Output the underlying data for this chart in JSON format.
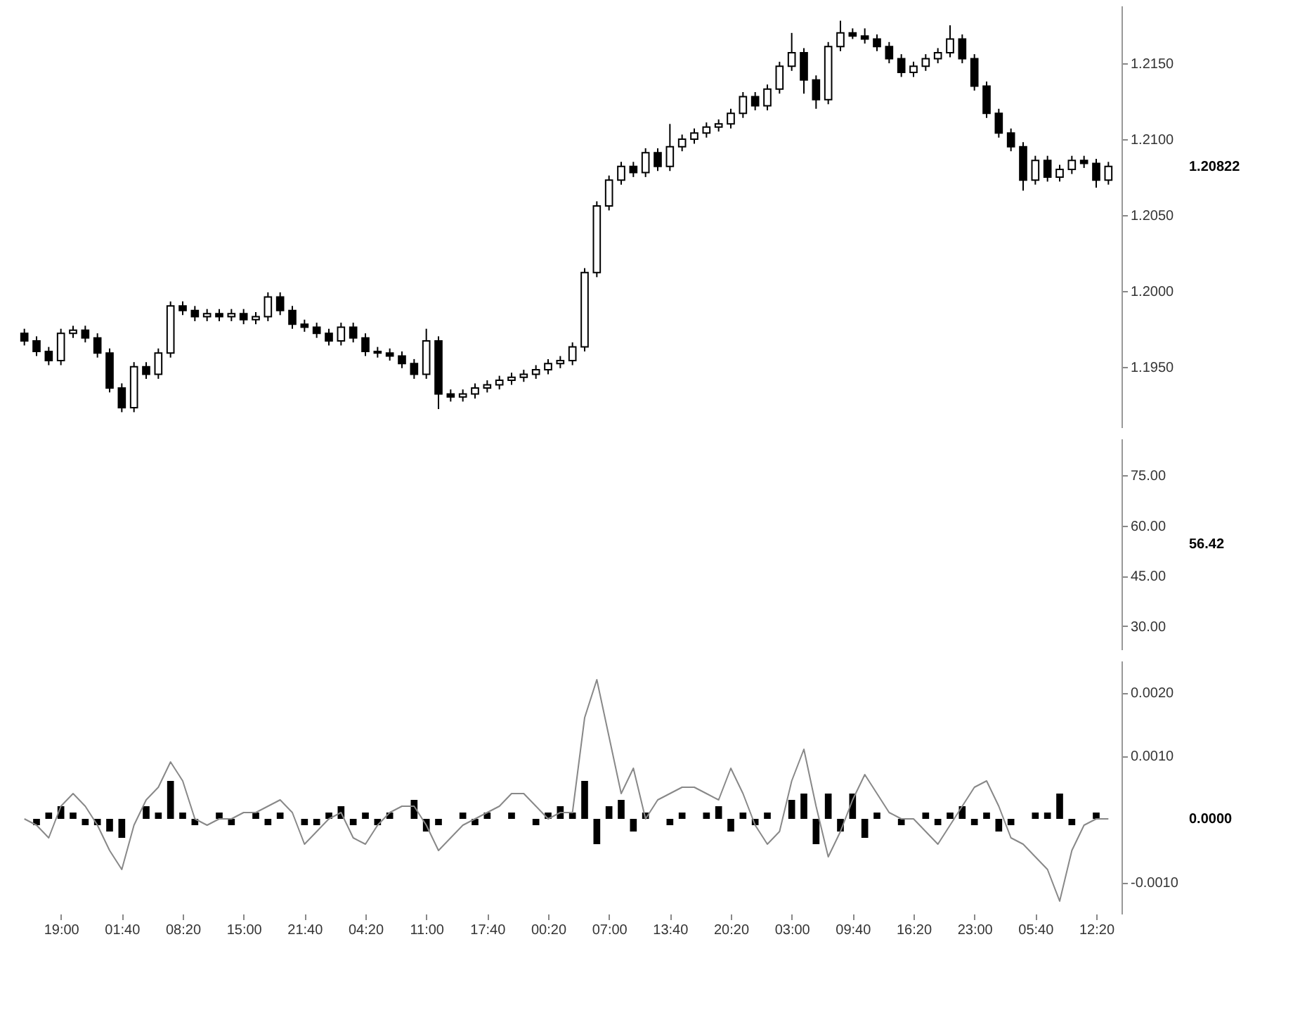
{
  "chart_data": [
    {
      "type": "candlestick",
      "color": "#000000",
      "tick_labels": "y",
      "ohlc": [
        [
          1.1972,
          1.1975,
          1.1964,
          1.1967
        ],
        [
          1.1967,
          1.197,
          1.1957,
          1.196
        ],
        [
          1.196,
          1.1963,
          1.1951,
          1.1954
        ],
        [
          1.1954,
          1.1975,
          1.1951,
          1.1972
        ],
        [
          1.1972,
          1.1977,
          1.1969,
          1.1974
        ],
        [
          1.1974,
          1.1977,
          1.1966,
          1.1969
        ],
        [
          1.1969,
          1.1972,
          1.1956,
          1.1959
        ],
        [
          1.1959,
          1.1962,
          1.1933,
          1.1936
        ],
        [
          1.1936,
          1.1939,
          1.192,
          1.1923
        ],
        [
          1.1923,
          1.1953,
          1.192,
          1.195
        ],
        [
          1.195,
          1.1953,
          1.1942,
          1.1945
        ],
        [
          1.1945,
          1.1962,
          1.1942,
          1.1959
        ],
        [
          1.1959,
          1.1993,
          1.1956,
          1.199
        ],
        [
          1.199,
          1.1993,
          1.1984,
          1.1987
        ],
        [
          1.1987,
          1.199,
          1.198,
          1.1983
        ],
        [
          1.1983,
          1.1988,
          1.198,
          1.1985
        ],
        [
          1.1985,
          1.1988,
          1.198,
          1.1983
        ],
        [
          1.1983,
          1.1988,
          1.198,
          1.1985
        ],
        [
          1.1985,
          1.1988,
          1.1978,
          1.1981
        ],
        [
          1.1981,
          1.1986,
          1.1978,
          1.1983
        ],
        [
          1.1983,
          1.1999,
          1.198,
          1.1996
        ],
        [
          1.1996,
          1.1999,
          1.1984,
          1.1987
        ],
        [
          1.1987,
          1.199,
          1.1975,
          1.1978
        ],
        [
          1.1978,
          1.1981,
          1.1973,
          1.1976
        ],
        [
          1.1976,
          1.1979,
          1.1969,
          1.1972
        ],
        [
          1.1972,
          1.1975,
          1.1964,
          1.1967
        ],
        [
          1.1967,
          1.1979,
          1.1964,
          1.1976
        ],
        [
          1.1976,
          1.1979,
          1.1966,
          1.1969
        ],
        [
          1.1969,
          1.1972,
          1.1957,
          1.196
        ],
        [
          1.196,
          1.1963,
          1.1956,
          1.1959
        ],
        [
          1.1959,
          1.1962,
          1.1954,
          1.1957
        ],
        [
          1.1957,
          1.196,
          1.1949,
          1.1952
        ],
        [
          1.1952,
          1.1955,
          1.1942,
          1.1945
        ],
        [
          1.1945,
          1.1975,
          1.1942,
          1.1967
        ],
        [
          1.1967,
          1.197,
          1.1922,
          1.1932
        ],
        [
          1.1932,
          1.1935,
          1.1927,
          1.193
        ],
        [
          1.193,
          1.1935,
          1.1927,
          1.1932
        ],
        [
          1.1932,
          1.1939,
          1.1929,
          1.1936
        ],
        [
          1.1936,
          1.1941,
          1.1933,
          1.1938
        ],
        [
          1.1938,
          1.1944,
          1.1935,
          1.1941
        ],
        [
          1.1941,
          1.1946,
          1.1938,
          1.1943
        ],
        [
          1.1943,
          1.1948,
          1.194,
          1.1945
        ],
        [
          1.1945,
          1.1951,
          1.1942,
          1.1948
        ],
        [
          1.1948,
          1.1955,
          1.1945,
          1.1952
        ],
        [
          1.1952,
          1.1957,
          1.1949,
          1.1954
        ],
        [
          1.1954,
          1.1966,
          1.1951,
          1.1963
        ],
        [
          1.1963,
          1.2015,
          1.196,
          1.2012
        ],
        [
          1.2012,
          1.2059,
          1.2009,
          1.2056
        ],
        [
          1.2056,
          1.2076,
          1.2053,
          1.2073
        ],
        [
          1.2073,
          1.2085,
          1.207,
          1.2082
        ],
        [
          1.2082,
          1.2085,
          1.2075,
          1.2078
        ],
        [
          1.2078,
          1.2094,
          1.2075,
          1.2091
        ],
        [
          1.2091,
          1.2094,
          1.2079,
          1.2082
        ],
        [
          1.2082,
          1.211,
          1.2079,
          1.2095
        ],
        [
          1.2095,
          1.2103,
          1.2092,
          1.21
        ],
        [
          1.21,
          1.2107,
          1.2097,
          1.2104
        ],
        [
          1.2104,
          1.2111,
          1.2101,
          1.2108
        ],
        [
          1.2108,
          1.2113,
          1.2105,
          1.211
        ],
        [
          1.211,
          1.212,
          1.2107,
          1.2117
        ],
        [
          1.2117,
          1.2131,
          1.2114,
          1.2128
        ],
        [
          1.2128,
          1.2131,
          1.2119,
          1.2122
        ],
        [
          1.2122,
          1.2136,
          1.2119,
          1.2133
        ],
        [
          1.2133,
          1.2151,
          1.213,
          1.2148
        ],
        [
          1.2148,
          1.217,
          1.2145,
          1.2157
        ],
        [
          1.2157,
          1.216,
          1.213,
          1.2139
        ],
        [
          1.2139,
          1.2142,
          1.212,
          1.2126
        ],
        [
          1.2126,
          1.2164,
          1.2123,
          1.2161
        ],
        [
          1.2161,
          1.2178,
          1.2158,
          1.217
        ],
        [
          1.217,
          1.2173,
          1.2166,
          1.2168
        ],
        [
          1.2168,
          1.2173,
          1.2163,
          1.2166
        ],
        [
          1.2166,
          1.2169,
          1.2158,
          1.2161
        ],
        [
          1.2161,
          1.2164,
          1.215,
          1.2153
        ],
        [
          1.2153,
          1.2156,
          1.2141,
          1.2144
        ],
        [
          1.2144,
          1.2151,
          1.2141,
          1.2148
        ],
        [
          1.2148,
          1.2156,
          1.2145,
          1.2153
        ],
        [
          1.2153,
          1.216,
          1.215,
          1.2157
        ],
        [
          1.2157,
          1.2175,
          1.2154,
          1.2166
        ],
        [
          1.2166,
          1.2169,
          1.215,
          1.2153
        ],
        [
          1.2153,
          1.2156,
          1.2132,
          1.2135
        ],
        [
          1.2135,
          1.2138,
          1.2114,
          1.2117
        ],
        [
          1.2117,
          1.212,
          1.2101,
          1.2104
        ],
        [
          1.2104,
          1.2107,
          1.2092,
          1.2095
        ],
        [
          1.2095,
          1.2098,
          1.2066,
          1.2073
        ],
        [
          1.2073,
          1.2089,
          1.207,
          1.2086
        ],
        [
          1.2086,
          1.2089,
          1.2072,
          1.2075
        ],
        [
          1.2075,
          1.2083,
          1.2072,
          1.208
        ],
        [
          1.208,
          1.2089,
          1.2077,
          1.2086
        ],
        [
          1.2086,
          1.2089,
          1.2081,
          1.2084
        ],
        [
          1.2084,
          1.2087,
          1.2068,
          1.2073
        ],
        [
          1.2073,
          1.2085,
          1.207,
          1.2082
        ]
      ],
      "ylim": [
        1.191,
        1.2188
      ],
      "yticks": [
        {
          "value": 1.195,
          "label": "1.1950"
        },
        {
          "value": 1.2,
          "label": "1.2000"
        },
        {
          "value": 1.205,
          "label": "1.2050"
        },
        {
          "value": 1.21,
          "label": "1.2100"
        },
        {
          "value": 1.215,
          "label": "1.2150"
        }
      ],
      "annotations": [
        "1.20822"
      ]
    },
    {
      "type": "line",
      "tick_labels": "y",
      "values": [
        null,
        null,
        null,
        null,
        null,
        null,
        null,
        null,
        null,
        null,
        null,
        null,
        null,
        null,
        null,
        null,
        null,
        null,
        null,
        null,
        null,
        null,
        null,
        null,
        null,
        null,
        null,
        null,
        null,
        null,
        null,
        null,
        null,
        null,
        null,
        null,
        null,
        null,
        null,
        null,
        null,
        null,
        null,
        null,
        null,
        null,
        null,
        null,
        null,
        null,
        null,
        null,
        null,
        null,
        null,
        null,
        null,
        null,
        null,
        null,
        null,
        null,
        null,
        null,
        null,
        null,
        null,
        null,
        null,
        null,
        null,
        null,
        null,
        null,
        null,
        null,
        null,
        null,
        null,
        null,
        null,
        null,
        null,
        null,
        null,
        null,
        null,
        null,
        null,
        null
      ],
      "ylim": [
        23,
        86
      ],
      "yticks": [
        {
          "value": 30,
          "label": "30.00"
        },
        {
          "value": 45,
          "label": "45.00"
        },
        {
          "value": 60,
          "label": "60.00"
        },
        {
          "value": 75,
          "label": "75.00"
        }
      ],
      "annotations": [
        "56.42"
      ]
    },
    {
      "type": "line",
      "categories": [
        null,
        null,
        null,
        "19:00",
        null,
        null,
        null,
        null,
        "01:40",
        null,
        null,
        null,
        null,
        "08:20",
        null,
        null,
        null,
        null,
        "15:00",
        null,
        null,
        null,
        null,
        "21:40",
        null,
        null,
        null,
        null,
        "04:20",
        null,
        null,
        null,
        null,
        "11:00",
        null,
        null,
        null,
        null,
        "17:40",
        null,
        null,
        null,
        null,
        "00:20",
        null,
        null,
        null,
        null,
        "07:00",
        null,
        null,
        null,
        null,
        "13:40",
        null,
        null,
        null,
        null,
        "20:20",
        null,
        null,
        null,
        null,
        "03:00",
        null,
        null,
        null,
        null,
        "09:40",
        null,
        null,
        null,
        null,
        "16:20",
        null,
        null,
        null,
        null,
        "23:00",
        null,
        null,
        null,
        null,
        "05:40",
        null,
        null,
        null,
        null,
        "12:20",
        null
      ],
      "series": [
        {
          "type": "bar",
          "color": "#000000",
          "values": [
            0,
            -0.0001,
            0.0001,
            0.0002,
            0.0001,
            -0.0001,
            -0.0001,
            -0.0002,
            -0.0003,
            0,
            0.0002,
            0.0001,
            0.0006,
            0.0001,
            -0.0001,
            0,
            0.0001,
            -0.0001,
            0,
            0.0001,
            -0.0001,
            0.0001,
            0,
            -0.0001,
            -0.0001,
            0.0001,
            0.0002,
            -0.0001,
            0.0001,
            -0.0001,
            0.0001,
            0,
            0.0003,
            -0.0002,
            -0.0001,
            0,
            0.0001,
            -0.0001,
            0.0001,
            0,
            0.0001,
            0,
            -0.0001,
            0.0001,
            0.0002,
            0.0001,
            0.0006,
            -0.0004,
            0.0002,
            0.0003,
            -0.0002,
            0.0001,
            0,
            -0.0001,
            0.0001,
            0,
            0.0001,
            0.0002,
            -0.0002,
            0.0001,
            -0.0001,
            0.0001,
            0,
            0.0003,
            0.0004,
            -0.0004,
            0.0004,
            -0.0002,
            0.0004,
            -0.0003,
            0.0001,
            0,
            -0.0001,
            0,
            0.0001,
            -0.0001,
            0.0001,
            0.0002,
            -0.0001,
            0.0001,
            -0.0002,
            -0.0001,
            0,
            0.0001,
            0.0001,
            0.0004,
            -0.0001,
            0,
            0.0001,
            0
          ]
        },
        {
          "type": "line",
          "color": "#888888",
          "values": [
            0,
            -0.0001,
            -0.0003,
            0.0002,
            0.0004,
            0.0002,
            -0.0001,
            -0.0005,
            -0.0008,
            -0.0001,
            0.0003,
            0.0005,
            0.0009,
            0.0006,
            0,
            -0.0001,
            0,
            0,
            0.0001,
            0.0001,
            0.0002,
            0.0003,
            0.0001,
            -0.0004,
            -0.0002,
            0,
            0.0001,
            -0.0003,
            -0.0004,
            -0.0001,
            0.0001,
            0.0002,
            0.0002,
            -0.0001,
            -0.0005,
            -0.0003,
            -0.0001,
            0,
            0.0001,
            0.0002,
            0.0004,
            0.0004,
            0.0002,
            0,
            0.0001,
            0.0001,
            0.0016,
            0.0022,
            0.0013,
            0.0004,
            0.0008,
            0,
            0.0003,
            0.0004,
            0.0005,
            0.0005,
            0.0004,
            0.0003,
            0.0008,
            0.0004,
            -0.0001,
            -0.0004,
            -0.0002,
            0.0006,
            0.0011,
            0.0002,
            -0.0006,
            -0.0002,
            0.0003,
            0.0007,
            0.0004,
            0.0001,
            0,
            0,
            -0.0002,
            -0.0004,
            -0.0001,
            0.0002,
            0.0005,
            0.0006,
            0.0002,
            -0.0003,
            -0.0004,
            -0.0006,
            -0.0008,
            -0.0013,
            -0.0005,
            -0.0001,
            0,
            0
          ]
        }
      ],
      "ylim": [
        -0.0015,
        0.0025
      ],
      "yticks": [
        {
          "value": -0.001,
          "label": "-0.0010"
        },
        {
          "value": 0.001,
          "label": "0.0010"
        },
        {
          "value": 0.002,
          "label": "0.0020"
        }
      ],
      "annotations": [
        "0.0000"
      ]
    }
  ]
}
